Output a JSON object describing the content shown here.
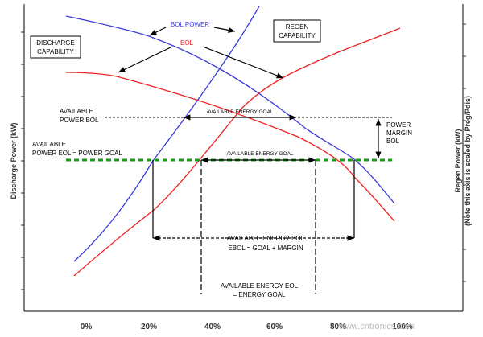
{
  "title_labels": {
    "bol_power": "BOL POWER",
    "eol": "EOL",
    "regen_capability": [
      "REGEN",
      "CAPABILITY"
    ],
    "discharge_capability": [
      "DISCHARGE",
      "CAPABILITY"
    ]
  },
  "axes": {
    "left_label": "Discharge Power (kW)",
    "right_label": [
      "Regen Power (kW)",
      "(Note this axis is scaled by Preg/Pdis)"
    ],
    "x_tick_labels": [
      "0%",
      "20%",
      "40%",
      "60%",
      "80%",
      "100%"
    ]
  },
  "annotations": {
    "available_power_bol": [
      "AVAILABLE",
      "POWER  BOL"
    ],
    "available_power_eol": [
      "AVAILABLE",
      "POWER  EOL  = POWER GOAL"
    ],
    "energy_goal_top": "AVAILABLE ENERGY GOAL",
    "energy_goal_mid": "AVAILABLE ENERGY GOAL",
    "power_margin": [
      "POWER",
      "MARGIN",
      "BOL"
    ],
    "energy_bol": [
      "AVAILABLE ENERGY BOL",
      "EBOL = GOAL + MARGIN"
    ],
    "energy_eol": [
      "AVAILABLE ENERGY EOL",
      "= ENERGY GOAL"
    ]
  },
  "watermark": "www.cntronics.com"
}
